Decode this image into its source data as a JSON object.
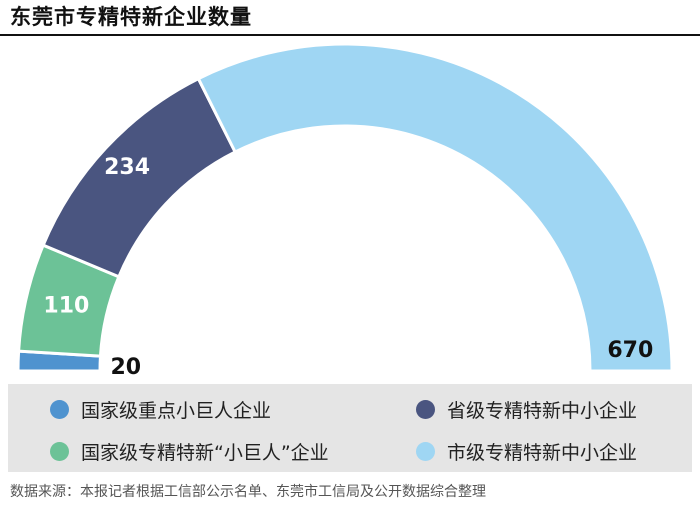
{
  "title": "东莞市专精特新企业数量",
  "chart_data": {
    "type": "pie",
    "categories": [
      "国家级重点小巨人企业",
      "国家级专精特新“小巨人”企业",
      "省级专精特新中小企业",
      "市级专精特新中小企业"
    ],
    "values": [
      20,
      110,
      234,
      670
    ],
    "colors": [
      "#4f93cf",
      "#6cc297",
      "#4a5580",
      "#9fd6f3"
    ],
    "style": "half-donut",
    "legend_position": "bottom"
  },
  "legend": {
    "items": [
      {
        "label": "国家级重点小巨人企业",
        "color": "#4f93cf"
      },
      {
        "label": "省级专精特新中小企业",
        "color": "#4a5580"
      },
      {
        "label": "国家级专精特新“小巨人”企业",
        "color": "#6cc297"
      },
      {
        "label": "市级专精特新中小企业",
        "color": "#9fd6f3"
      }
    ]
  },
  "source": "数据来源：本报记者根据工信部公示名单、东莞市工信局及公开数据综合整理"
}
